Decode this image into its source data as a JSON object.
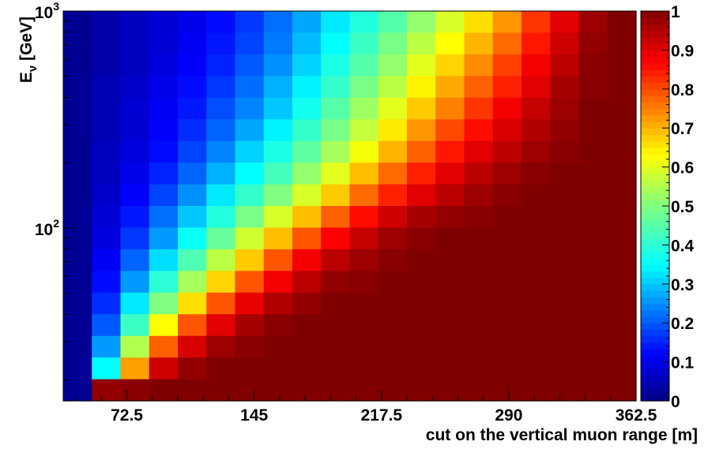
{
  "chart_data": {
    "type": "heatmap",
    "title": "",
    "xlabel": "cut on the vertical muon range [m]",
    "ylabel": "E",
    "ylabel_subscript": "ν",
    "ylabel_unit": " [GeV]",
    "x_ticks": [
      72.5,
      145,
      217.5,
      290,
      362.5
    ],
    "x_tick_labels": [
      "72.5",
      "145",
      "217.5",
      "290",
      "362.5"
    ],
    "xlim": [
      36.25,
      362.5
    ],
    "y_scale": "log",
    "ylim": [
      16,
      1000
    ],
    "y_ticks": [
      {
        "base": "10",
        "exp": "2",
        "value": 100
      },
      {
        "base": "10",
        "exp": "3",
        "value": 1000
      }
    ],
    "colorbar": {
      "range": [
        0,
        1
      ],
      "ticks": [
        0,
        0.1,
        0.2,
        0.3,
        0.4,
        0.5,
        0.6,
        0.7,
        0.8,
        0.9,
        1
      ],
      "tick_labels": [
        "0",
        "0.1",
        "0.2",
        "0.3",
        "0.4",
        "0.5",
        "0.6",
        "0.7",
        "0.8",
        "0.9",
        "1"
      ]
    },
    "n_columns": 20,
    "n_rows": 18,
    "cells_note": "values[row][col]; row 0 = top (highest energy), col 0 = leftmost range bin",
    "values": [
      [
        0.02,
        0.04,
        0.06,
        0.08,
        0.1,
        0.13,
        0.17,
        0.22,
        0.27,
        0.33,
        0.39,
        0.45,
        0.52,
        0.59,
        0.66,
        0.73,
        0.82,
        0.9,
        0.97,
        1.0
      ],
      [
        0.02,
        0.04,
        0.06,
        0.08,
        0.11,
        0.14,
        0.18,
        0.23,
        0.29,
        0.35,
        0.42,
        0.49,
        0.56,
        0.63,
        0.7,
        0.77,
        0.85,
        0.92,
        0.98,
        1.0
      ],
      [
        0.02,
        0.04,
        0.06,
        0.09,
        0.12,
        0.15,
        0.2,
        0.25,
        0.31,
        0.38,
        0.45,
        0.52,
        0.6,
        0.67,
        0.74,
        0.81,
        0.88,
        0.94,
        0.99,
        1.0
      ],
      [
        0.02,
        0.05,
        0.07,
        0.1,
        0.13,
        0.17,
        0.22,
        0.28,
        0.34,
        0.41,
        0.49,
        0.56,
        0.64,
        0.71,
        0.78,
        0.84,
        0.9,
        0.96,
        0.99,
        1.0
      ],
      [
        0.02,
        0.05,
        0.08,
        0.11,
        0.14,
        0.19,
        0.24,
        0.3,
        0.37,
        0.45,
        0.53,
        0.6,
        0.68,
        0.75,
        0.82,
        0.88,
        0.93,
        0.97,
        1.0,
        1.0
      ],
      [
        0.02,
        0.05,
        0.08,
        0.12,
        0.16,
        0.21,
        0.27,
        0.34,
        0.41,
        0.49,
        0.57,
        0.65,
        0.73,
        0.8,
        0.86,
        0.91,
        0.95,
        0.98,
        1.0,
        1.0
      ],
      [
        0.02,
        0.06,
        0.09,
        0.13,
        0.18,
        0.24,
        0.31,
        0.38,
        0.46,
        0.54,
        0.62,
        0.7,
        0.78,
        0.85,
        0.9,
        0.94,
        0.97,
        0.99,
        1.0,
        1.0
      ],
      [
        0.02,
        0.06,
        0.1,
        0.15,
        0.21,
        0.28,
        0.35,
        0.43,
        0.52,
        0.6,
        0.69,
        0.77,
        0.84,
        0.9,
        0.94,
        0.97,
        0.99,
        1.0,
        1.0,
        1.0
      ],
      [
        0.02,
        0.07,
        0.12,
        0.18,
        0.25,
        0.33,
        0.41,
        0.5,
        0.59,
        0.68,
        0.77,
        0.84,
        0.9,
        0.94,
        0.97,
        0.99,
        1.0,
        1.0,
        1.0,
        1.0
      ],
      [
        0.02,
        0.08,
        0.14,
        0.22,
        0.3,
        0.39,
        0.49,
        0.59,
        0.69,
        0.78,
        0.86,
        0.92,
        0.96,
        0.98,
        0.99,
        1.0,
        1.0,
        1.0,
        1.0,
        1.0
      ],
      [
        0.02,
        0.09,
        0.17,
        0.26,
        0.36,
        0.47,
        0.58,
        0.69,
        0.79,
        0.87,
        0.93,
        0.97,
        0.99,
        1.0,
        1.0,
        1.0,
        1.0,
        1.0,
        1.0,
        1.0
      ],
      [
        0.02,
        0.11,
        0.21,
        0.32,
        0.44,
        0.56,
        0.68,
        0.79,
        0.88,
        0.94,
        0.97,
        0.99,
        1.0,
        1.0,
        1.0,
        1.0,
        1.0,
        1.0,
        1.0,
        1.0
      ],
      [
        0.02,
        0.13,
        0.26,
        0.4,
        0.54,
        0.67,
        0.79,
        0.88,
        0.94,
        0.98,
        0.99,
        1.0,
        1.0,
        1.0,
        1.0,
        1.0,
        1.0,
        1.0,
        1.0,
        1.0
      ],
      [
        0.02,
        0.16,
        0.33,
        0.5,
        0.66,
        0.79,
        0.89,
        0.95,
        0.98,
        1.0,
        1.0,
        1.0,
        1.0,
        1.0,
        1.0,
        1.0,
        1.0,
        1.0,
        1.0,
        1.0
      ],
      [
        0.02,
        0.2,
        0.42,
        0.63,
        0.79,
        0.9,
        0.96,
        0.99,
        1.0,
        1.0,
        1.0,
        1.0,
        1.0,
        1.0,
        1.0,
        1.0,
        1.0,
        1.0,
        1.0,
        1.0
      ],
      [
        0.02,
        0.26,
        0.55,
        0.78,
        0.91,
        0.97,
        0.99,
        1.0,
        1.0,
        1.0,
        1.0,
        1.0,
        1.0,
        1.0,
        1.0,
        1.0,
        1.0,
        1.0,
        1.0,
        1.0
      ],
      [
        0.02,
        0.35,
        0.72,
        0.92,
        0.98,
        1.0,
        1.0,
        1.0,
        1.0,
        1.0,
        1.0,
        1.0,
        1.0,
        1.0,
        1.0,
        1.0,
        1.0,
        1.0,
        1.0,
        1.0
      ],
      [
        0.02,
        0.98,
        0.99,
        1.0,
        1.0,
        1.0,
        1.0,
        1.0,
        1.0,
        1.0,
        1.0,
        1.0,
        1.0,
        1.0,
        1.0,
        1.0,
        1.0,
        1.0,
        1.0,
        1.0
      ]
    ]
  }
}
